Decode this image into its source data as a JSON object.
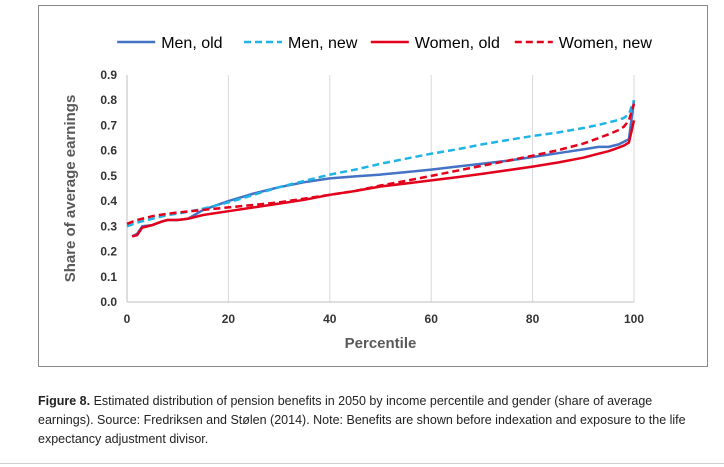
{
  "chart_data": {
    "type": "line",
    "xlabel": "Percentile",
    "ylabel": "Share of average earnings",
    "xlim": [
      0,
      100
    ],
    "ylim": [
      0,
      0.9
    ],
    "x_ticks": [
      "0",
      "20",
      "40",
      "60",
      "80",
      "100"
    ],
    "y_ticks": [
      "0.0",
      "0.1",
      "0.2",
      "0.3",
      "0.4",
      "0.5",
      "0.6",
      "0.7",
      "0.8",
      "0.9"
    ],
    "x_tick_values": [
      0,
      20,
      40,
      60,
      80,
      100
    ],
    "y_tick_values": [
      0,
      0.1,
      0.2,
      0.3,
      0.4,
      0.5,
      0.6,
      0.7,
      0.8,
      0.9
    ],
    "grid": "vertical",
    "legend_position": "top",
    "series": [
      {
        "name": "Men, old",
        "color": "#4472c4",
        "dash": "solid",
        "x": [
          1,
          2,
          3,
          5,
          7,
          8,
          10,
          12,
          15,
          20,
          25,
          30,
          35,
          40,
          45,
          50,
          55,
          60,
          65,
          70,
          75,
          80,
          85,
          90,
          93,
          95,
          97,
          98,
          99,
          100
        ],
        "y": [
          0.26,
          0.27,
          0.3,
          0.305,
          0.32,
          0.325,
          0.325,
          0.33,
          0.365,
          0.4,
          0.43,
          0.455,
          0.475,
          0.49,
          0.498,
          0.505,
          0.515,
          0.525,
          0.537,
          0.548,
          0.56,
          0.575,
          0.59,
          0.605,
          0.615,
          0.615,
          0.625,
          0.635,
          0.645,
          0.8
        ]
      },
      {
        "name": "Men, new",
        "color": "#1eb4e6",
        "dash": "dashed",
        "x": [
          0,
          2,
          5,
          8,
          10,
          15,
          20,
          25,
          30,
          35,
          40,
          45,
          50,
          55,
          60,
          65,
          70,
          75,
          80,
          85,
          90,
          93,
          95,
          97,
          98,
          99,
          100
        ],
        "y": [
          0.3,
          0.315,
          0.33,
          0.345,
          0.35,
          0.37,
          0.395,
          0.425,
          0.455,
          0.48,
          0.505,
          0.525,
          0.548,
          0.568,
          0.588,
          0.605,
          0.625,
          0.642,
          0.658,
          0.672,
          0.69,
          0.702,
          0.712,
          0.722,
          0.73,
          0.745,
          0.8
        ]
      },
      {
        "name": "Women, old",
        "color": "#e3001b",
        "dash": "solid",
        "x": [
          1,
          2,
          3,
          5,
          7,
          8,
          10,
          12,
          15,
          20,
          25,
          30,
          35,
          40,
          45,
          50,
          55,
          60,
          65,
          70,
          75,
          80,
          85,
          90,
          93,
          95,
          97,
          98,
          99,
          100
        ],
        "y": [
          0.26,
          0.265,
          0.295,
          0.305,
          0.32,
          0.325,
          0.325,
          0.33,
          0.345,
          0.36,
          0.375,
          0.39,
          0.405,
          0.425,
          0.44,
          0.458,
          0.47,
          0.482,
          0.495,
          0.508,
          0.522,
          0.537,
          0.553,
          0.572,
          0.588,
          0.598,
          0.612,
          0.62,
          0.632,
          0.72
        ]
      },
      {
        "name": "Women, new",
        "color": "#e3001b",
        "dash": "dashed",
        "x": [
          0,
          2,
          5,
          8,
          10,
          15,
          20,
          25,
          30,
          35,
          40,
          45,
          50,
          55,
          60,
          65,
          70,
          75,
          80,
          85,
          90,
          93,
          95,
          97,
          98,
          99,
          100
        ],
        "y": [
          0.31,
          0.325,
          0.34,
          0.35,
          0.355,
          0.365,
          0.375,
          0.385,
          0.395,
          0.41,
          0.425,
          0.44,
          0.462,
          0.48,
          0.5,
          0.52,
          0.54,
          0.56,
          0.58,
          0.602,
          0.628,
          0.65,
          0.665,
          0.682,
          0.695,
          0.72,
          0.785
        ]
      }
    ]
  },
  "caption": {
    "label": "Figure 8.",
    "text": " Estimated distribution of pension benefits in 2050 by income percentile and gender (share of average earnings). Source: Fredriksen and Stølen (2014). Note: Benefits are shown before indexation and exposure to the life expectancy adjustment divisor."
  }
}
